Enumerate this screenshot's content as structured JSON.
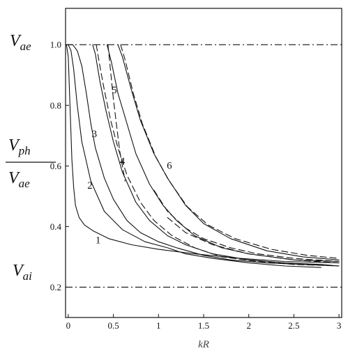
{
  "chart_data": {
    "type": "line",
    "xlabel": "kR",
    "ylabel_numerator": "V",
    "ylabel_numerator_sub": "ph",
    "ylabel_denominator": "V",
    "ylabel_denominator_sub": "ae",
    "xlim": [
      -0.03,
      3.03
    ],
    "ylim": [
      0.1,
      1.12
    ],
    "x_ticks": [
      "0",
      "0.5",
      "1",
      "1.5",
      "2",
      "2.5",
      "3"
    ],
    "x_tick_values": [
      0,
      0.5,
      1,
      1.5,
      2,
      2.5,
      3
    ],
    "y_ticks": [
      "0.2",
      "0.4",
      "0.6",
      "0.8",
      "1.0"
    ],
    "y_tick_values": [
      0.2,
      0.4,
      0.6,
      0.8,
      1.0
    ],
    "reference_lines": [
      {
        "name": "V",
        "sub": "ae",
        "value": 1.0
      },
      {
        "name": "V",
        "sub": "ai",
        "value": 0.2
      }
    ],
    "curve_labels": [
      {
        "text": "1",
        "x": 0.33,
        "y": 0.345
      },
      {
        "text": "2",
        "x": 0.24,
        "y": 0.525
      },
      {
        "text": "3",
        "x": 0.29,
        "y": 0.695
      },
      {
        "text": "4",
        "x": 0.6,
        "y": 0.605
      },
      {
        "text": "5",
        "x": 0.51,
        "y": 0.84
      },
      {
        "text": "6",
        "x": 1.12,
        "y": 0.59
      }
    ],
    "series": [
      {
        "style": "solid",
        "x": [
          -0.02,
          0.0,
          0.02,
          0.04,
          0.06,
          0.08,
          0.12,
          0.18,
          0.28,
          0.45,
          0.7,
          1.0,
          1.4,
          1.9,
          2.4,
          3.0
        ],
        "y": [
          1.0,
          0.96,
          0.79,
          0.62,
          0.53,
          0.47,
          0.43,
          0.405,
          0.385,
          0.36,
          0.34,
          0.325,
          0.31,
          0.295,
          0.285,
          0.28
        ]
      },
      {
        "style": "solid",
        "x": [
          -0.01,
          0.0,
          0.03,
          0.06,
          0.1,
          0.15,
          0.25,
          0.4,
          0.6,
          0.85,
          1.1,
          1.3,
          1.6,
          2.0,
          2.4,
          2.8
        ],
        "y": [
          1.0,
          1.0,
          0.98,
          0.92,
          0.8,
          0.68,
          0.55,
          0.45,
          0.39,
          0.35,
          0.33,
          0.31,
          0.295,
          0.28,
          0.27,
          0.265
        ]
      },
      {
        "style": "solid",
        "x": [
          0.0,
          0.05,
          0.1,
          0.15,
          0.2,
          0.25,
          0.3,
          0.4,
          0.5,
          0.65,
          0.8,
          1.0,
          1.2,
          1.5,
          1.8,
          2.2,
          2.6,
          3.0
        ],
        "y": [
          1.0,
          1.0,
          0.98,
          0.93,
          0.84,
          0.74,
          0.66,
          0.56,
          0.49,
          0.42,
          0.38,
          0.35,
          0.33,
          0.305,
          0.29,
          0.28,
          0.275,
          0.27
        ]
      },
      {
        "style": "solid",
        "x": [
          0.27,
          0.3,
          0.35,
          0.42,
          0.5,
          0.6,
          0.75,
          0.9,
          1.1,
          1.3,
          1.6,
          2.0,
          2.4,
          2.8,
          3.0
        ],
        "y": [
          1.0,
          0.97,
          0.88,
          0.78,
          0.68,
          0.58,
          0.48,
          0.42,
          0.37,
          0.34,
          0.31,
          0.29,
          0.28,
          0.275,
          0.27
        ]
      },
      {
        "style": "solid",
        "x": [
          0.43,
          0.48,
          0.55,
          0.65,
          0.75,
          0.9,
          1.05,
          1.2,
          1.4,
          1.7,
          2.0,
          2.5,
          3.0
        ],
        "y": [
          1.0,
          0.94,
          0.84,
          0.74,
          0.64,
          0.54,
          0.47,
          0.42,
          0.37,
          0.33,
          0.31,
          0.29,
          0.285
        ]
      },
      {
        "style": "solid",
        "x": [
          0.55,
          0.6,
          0.7,
          0.8,
          0.95,
          1.1,
          1.3,
          1.5,
          1.8,
          2.2,
          2.6,
          3.0
        ],
        "y": [
          1.0,
          0.96,
          0.85,
          0.75,
          0.64,
          0.56,
          0.47,
          0.41,
          0.36,
          0.32,
          0.3,
          0.29
        ]
      },
      {
        "style": "dashed",
        "x": [
          0.31,
          0.35,
          0.4,
          0.47,
          0.55,
          0.65,
          0.8,
          0.95,
          1.15,
          1.4,
          1.7,
          2.1,
          2.5,
          3.0
        ],
        "y": [
          1.0,
          0.93,
          0.85,
          0.75,
          0.66,
          0.57,
          0.48,
          0.42,
          0.37,
          0.33,
          0.3,
          0.285,
          0.275,
          0.27
        ]
      },
      {
        "style": "dashed",
        "x": [
          0.44,
          0.5,
          0.57,
          0.63
        ],
        "y": [
          1.0,
          0.82,
          0.65,
          0.55
        ]
      },
      {
        "style": "dashed",
        "x": [
          0.58,
          0.63,
          0.72,
          0.82,
          0.97,
          1.12,
          1.32,
          1.55,
          1.85,
          2.25,
          2.65,
          3.0
        ],
        "y": [
          1.0,
          0.95,
          0.84,
          0.74,
          0.63,
          0.55,
          0.465,
          0.405,
          0.36,
          0.325,
          0.305,
          0.295
        ]
      },
      {
        "style": "dashed",
        "x": [
          0.95,
          1.1,
          1.3,
          1.5,
          1.8,
          2.1,
          2.5,
          3.0
        ],
        "y": [
          0.52,
          0.45,
          0.395,
          0.36,
          0.33,
          0.31,
          0.295,
          0.285
        ]
      },
      {
        "style": "dashed",
        "x": [
          1.1,
          1.3,
          1.6,
          2.0,
          2.5,
          3.0
        ],
        "y": [
          0.43,
          0.38,
          0.34,
          0.31,
          0.29,
          0.28
        ]
      }
    ]
  }
}
